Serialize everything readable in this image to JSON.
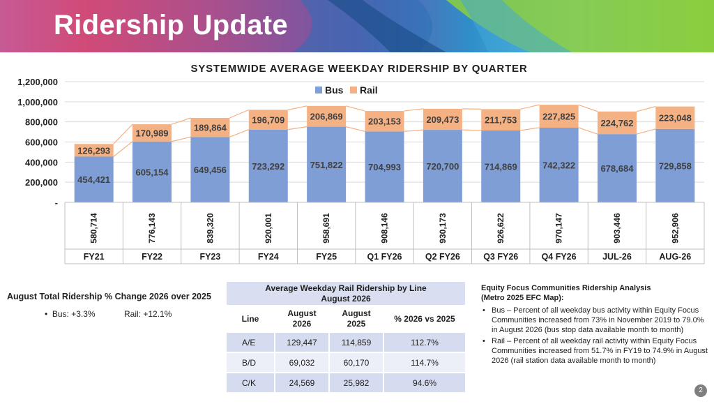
{
  "header": {
    "title": "Ridership Update"
  },
  "chart_data": {
    "type": "bar",
    "stacked": true,
    "title": "SYSTEMWIDE AVERAGE WEEKDAY RIDERSHIP BY QUARTER",
    "categories": [
      "FY21",
      "FY22",
      "FY23",
      "FY24",
      "FY25",
      "Q1 FY26",
      "Q2 FY26",
      "Q3 FY26",
      "Q4 FY26",
      "JUL-26",
      "AUG-26"
    ],
    "series": [
      {
        "name": "Bus",
        "color": "#7f9ed6",
        "values": [
          454421,
          605154,
          649456,
          723292,
          751822,
          704993,
          720700,
          714869,
          742322,
          678684,
          729858
        ]
      },
      {
        "name": "Rail",
        "color": "#f4b183",
        "values": [
          126293,
          170989,
          189864,
          196709,
          206869,
          203153,
          209473,
          211753,
          227825,
          224762,
          223048
        ]
      }
    ],
    "bus_labels": [
      "454,421",
      "605,154",
      "649,456",
      "723,292",
      "751,822",
      "704,993",
      "720,700",
      "714,869",
      "742,322",
      "678,684",
      "729,858"
    ],
    "rail_labels": [
      "126,293",
      "170,989",
      "189,864",
      "196,709",
      "206,869",
      "203,153",
      "209,473",
      "211,753",
      "227,825",
      "224,762",
      "223,048"
    ],
    "totals": [
      "580,714",
      "776,143",
      "839,320",
      "920,001",
      "958,691",
      "908,146",
      "930,173",
      "926,622",
      "970,147",
      "903,446",
      "952,906"
    ],
    "yticks": [
      "-",
      "200,000",
      "400,000",
      "600,000",
      "800,000",
      "1,000,000",
      "1,200,000"
    ],
    "ylim": [
      0,
      1200000
    ],
    "legend": "top-center",
    "grid": true
  },
  "change": {
    "title": "August Total Ridership % Change 2026 over 2025",
    "bus": "Bus: +3.3%",
    "rail": "Rail: +12.1%"
  },
  "rail_table": {
    "title_line1": "Average Weekday Rail Ridership by Line",
    "title_line2": "August 2026",
    "headers": [
      "Line",
      "August 2026",
      "August 2025",
      "% 2026 vs 2025"
    ],
    "rows": [
      [
        "A/E",
        "129,447",
        "114,859",
        "112.7%"
      ],
      [
        "B/D",
        "69,032",
        "60,170",
        "114.7%"
      ],
      [
        "C/K",
        "24,569",
        "25,982",
        "94.6%"
      ]
    ]
  },
  "efc": {
    "title_line1": "Equity Focus Communities Ridership Analysis",
    "title_line2": "(Metro 2025 EFC Map):",
    "items": [
      "Bus – Percent of all weekday bus activity within Equity Focus Communities increased from 73% in November 2019 to 79.0% in August 2026 (bus stop data available month to month)",
      "Rail – Percent of all weekday rail activity within Equity Focus Communities increased from 51.7% in FY19 to 74.9% in August 2026 (rail station data available month to month)"
    ]
  },
  "page_number": "2"
}
